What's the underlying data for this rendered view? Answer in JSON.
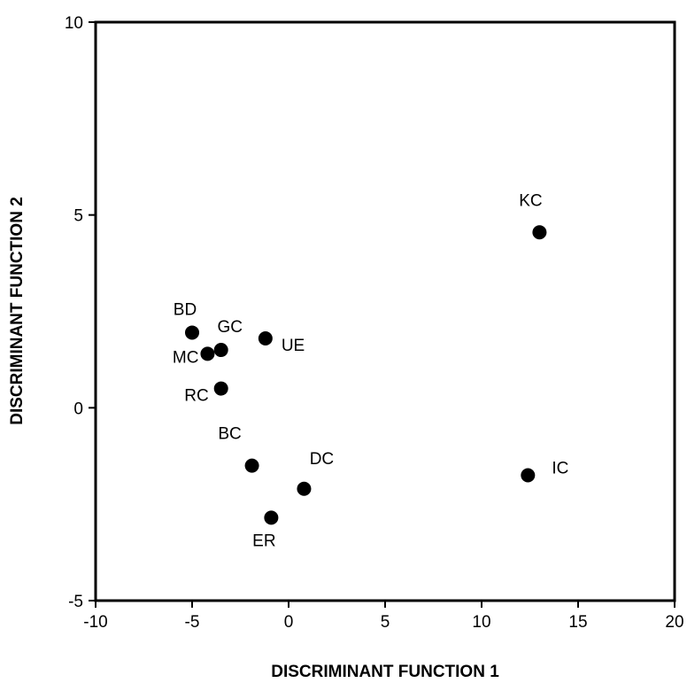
{
  "chart_data": {
    "type": "scatter",
    "title": "",
    "xlabel": "DISCRIMINANT FUNCTION 1",
    "ylabel": "DISCRIMINANT FUNCTION 2",
    "xlim": [
      -10,
      20
    ],
    "ylim": [
      -5,
      10
    ],
    "xticks": [
      "-10",
      "-5",
      "0",
      "5",
      "10",
      "15",
      "20"
    ],
    "yticks": [
      "-5",
      "0",
      "5",
      "10"
    ],
    "grid": false,
    "legend": "none",
    "marker_color": "#000000",
    "points": [
      {
        "label": "KC",
        "x": 13.0,
        "y": 4.55
      },
      {
        "label": "BD",
        "x": -5.0,
        "y": 1.95
      },
      {
        "label": "GC",
        "x": -3.5,
        "y": 1.5
      },
      {
        "label": "MC",
        "x": -4.2,
        "y": 1.4
      },
      {
        "label": "UE",
        "x": -1.2,
        "y": 1.8
      },
      {
        "label": "RC",
        "x": -3.5,
        "y": 0.5
      },
      {
        "label": "BC",
        "x": -1.9,
        "y": -1.5
      },
      {
        "label": "DC",
        "x": 0.8,
        "y": -2.1
      },
      {
        "label": "ER",
        "x": -0.9,
        "y": -2.85
      },
      {
        "label": "IC",
        "x": 12.4,
        "y": -1.75
      }
    ]
  }
}
